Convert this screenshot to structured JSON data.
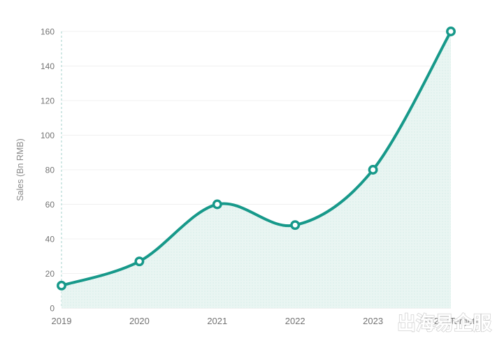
{
  "chart_data": {
    "type": "line",
    "title": "",
    "categories": [
      "2019",
      "2020",
      "2021",
      "2022",
      "2023",
      "2025 (Target)"
    ],
    "series": [
      {
        "name": "Sales",
        "values": [
          13,
          27,
          60,
          48,
          80,
          160
        ]
      }
    ],
    "xlabel": "",
    "ylabel": "Sales (Bn RMB)",
    "ylim": [
      0,
      160
    ],
    "yticks": [
      0,
      20,
      40,
      60,
      80,
      100,
      120,
      140,
      160
    ],
    "grid": true,
    "smooth": true,
    "legend_position": "none",
    "line_color": "#17998a",
    "marker_style": "open-circle",
    "marker_fill": "#ffffff",
    "area_fill": "#e9f5f2",
    "area_dot_color": "rgba(23,153,138,0.10)",
    "gridline_color": "#f0f0f0",
    "axis_baseline_color": "#e4e4e4",
    "left_dashed_line_color": "#a3d2cb",
    "tick_label_color": "#737373"
  },
  "watermark": {
    "text": "出海易企服"
  }
}
